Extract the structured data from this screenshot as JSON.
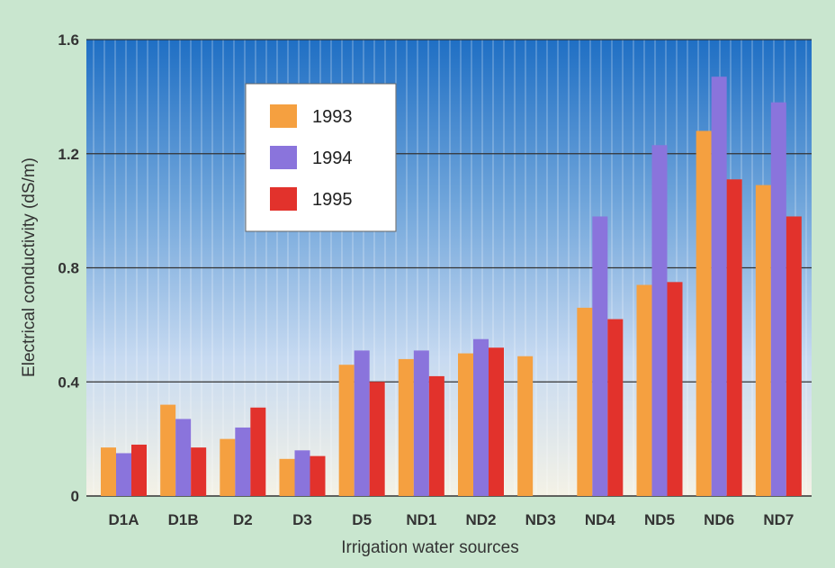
{
  "chart_data": {
    "type": "bar",
    "title": "",
    "xlabel": "Irrigation water sources",
    "ylabel": "Electrical conductivity (dS/m)",
    "ylim": [
      0,
      1.6
    ],
    "yticks": [
      {
        "value": 0,
        "label": "0"
      },
      {
        "value": 0.4,
        "label": "0.4"
      },
      {
        "value": 0.8,
        "label": "0.8"
      },
      {
        "value": 1.2,
        "label": "1.2"
      },
      {
        "value": 1.6,
        "label": "1.6"
      }
    ],
    "grid": true,
    "legend_position": "top-left",
    "categories": [
      "D1A",
      "D1B",
      "D2",
      "D3",
      "D5",
      "ND1",
      "ND2",
      "ND3",
      "ND4",
      "ND5",
      "ND6",
      "ND7"
    ],
    "series": [
      {
        "name": "1993",
        "color": "#f5a040",
        "values": [
          0.17,
          0.32,
          0.2,
          0.13,
          0.46,
          0.48,
          0.5,
          0.49,
          0.66,
          0.74,
          1.28,
          1.09
        ]
      },
      {
        "name": "1994",
        "color": "#8a74dc",
        "values": [
          0.15,
          0.27,
          0.24,
          0.16,
          0.51,
          0.51,
          0.55,
          null,
          0.98,
          1.23,
          1.47,
          1.38
        ]
      },
      {
        "name": "1995",
        "color": "#e2322c",
        "values": [
          0.18,
          0.17,
          0.31,
          0.14,
          0.4,
          0.42,
          0.52,
          null,
          0.62,
          0.75,
          1.11,
          0.98
        ]
      }
    ]
  }
}
